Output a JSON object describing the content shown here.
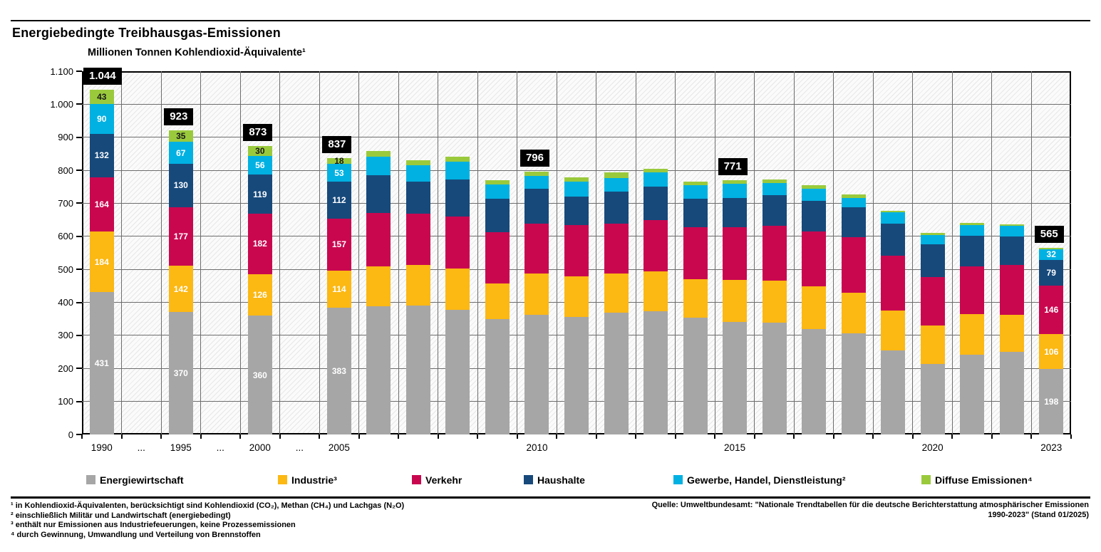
{
  "header": {
    "title": "Energiebedingte Treibhausgas-Emissionen",
    "subtitle": "Millionen Tonnen Kohlendioxid-Äquivalente¹"
  },
  "chart_data": {
    "type": "bar",
    "stacked": true,
    "title": "Energiebedingte Treibhausgas-Emissionen",
    "ylabel": "Millionen Tonnen Kohlendioxid-Äquivalente¹",
    "ylim": [
      0,
      1100
    ],
    "ytick_step": 100,
    "grid": true,
    "legend_position": "bottom",
    "series": [
      {
        "key": "energiewirtschaft",
        "name": "Energiewirtschaft",
        "color": "#a6a6a6",
        "label_color": "#ffffff"
      },
      {
        "key": "industrie",
        "name": "Industrie³",
        "color": "#fcb813",
        "label_color": "#ffffff"
      },
      {
        "key": "verkehr",
        "name": "Verkehr",
        "color": "#c9074f",
        "label_color": "#ffffff"
      },
      {
        "key": "haushalte",
        "name": "Haushalte",
        "color": "#17497b",
        "label_color": "#ffffff"
      },
      {
        "key": "gewerbe-handel-dienstleistung",
        "name": "Gewerbe, Handel, Dienstleistung²",
        "color": "#00b1e2",
        "label_color": "#ffffff"
      },
      {
        "key": "diffuse-emissionen",
        "name": "Diffuse Emissionen⁴",
        "color": "#9aca3c",
        "label_color": "#1a1a1a"
      }
    ],
    "x_slot_labels": [
      "1990",
      "...",
      "1995",
      "...",
      "2000",
      "...",
      "2005",
      "",
      "",
      "",
      "",
      "2010",
      "",
      "",
      "",
      "",
      "2015",
      "",
      "",
      "",
      "",
      "2020",
      "",
      "",
      "2023"
    ],
    "bars": [
      {
        "year": "1990",
        "slot": 0,
        "values": [
          431,
          184,
          164,
          132,
          90,
          43
        ],
        "total_label": "1.044",
        "segment_labels": true
      },
      {
        "year": "1995",
        "slot": 2,
        "values": [
          370,
          142,
          177,
          130,
          67,
          35
        ],
        "total_label": "923",
        "segment_labels": true
      },
      {
        "year": "2000",
        "slot": 4,
        "values": [
          360,
          126,
          182,
          119,
          56,
          30
        ],
        "total_label": "873",
        "segment_labels": true
      },
      {
        "year": "2005",
        "slot": 6,
        "values": [
          383,
          114,
          157,
          112,
          53,
          18
        ],
        "total_label": "837",
        "segment_labels": true
      },
      {
        "year": "2006",
        "slot": 7,
        "values": [
          388,
          120,
          162,
          115,
          56,
          17
        ],
        "total_label": null,
        "segment_labels": false
      },
      {
        "year": "2007",
        "slot": 8,
        "values": [
          390,
          124,
          155,
          97,
          50,
          14
        ],
        "total_label": null,
        "segment_labels": false
      },
      {
        "year": "2008",
        "slot": 9,
        "values": [
          378,
          124,
          158,
          112,
          55,
          15
        ],
        "total_label": null,
        "segment_labels": false
      },
      {
        "year": "2009",
        "slot": 10,
        "values": [
          349,
          108,
          155,
          102,
          43,
          13
        ],
        "total_label": null,
        "segment_labels": false
      },
      {
        "year": "2010",
        "slot": 11,
        "values": [
          362,
          125,
          152,
          105,
          40,
          12
        ],
        "total_label": "796",
        "segment_labels": false
      },
      {
        "year": "2011",
        "slot": 12,
        "values": [
          355,
          123,
          157,
          86,
          45,
          13
        ],
        "total_label": null,
        "segment_labels": false
      },
      {
        "year": "2012",
        "slot": 13,
        "values": [
          368,
          119,
          152,
          97,
          41,
          16
        ],
        "total_label": null,
        "segment_labels": false
      },
      {
        "year": "2013",
        "slot": 14,
        "values": [
          373,
          120,
          157,
          100,
          43,
          11
        ],
        "total_label": null,
        "segment_labels": false
      },
      {
        "year": "2014",
        "slot": 15,
        "values": [
          354,
          117,
          157,
          86,
          41,
          10
        ],
        "total_label": null,
        "segment_labels": false
      },
      {
        "year": "2015",
        "slot": 16,
        "values": [
          340,
          128,
          160,
          88,
          44,
          11
        ],
        "total_label": "771",
        "segment_labels": false
      },
      {
        "year": "2016",
        "slot": 17,
        "values": [
          338,
          128,
          166,
          93,
          37,
          10
        ],
        "total_label": null,
        "segment_labels": false
      },
      {
        "year": "2017",
        "slot": 18,
        "values": [
          319,
          129,
          167,
          93,
          36,
          10
        ],
        "total_label": null,
        "segment_labels": false
      },
      {
        "year": "2018",
        "slot": 19,
        "values": [
          306,
          123,
          169,
          90,
          29,
          9
        ],
        "total_label": null,
        "segment_labels": false
      },
      {
        "year": "2019",
        "slot": 20,
        "values": [
          254,
          121,
          167,
          97,
          33,
          6
        ],
        "total_label": null,
        "segment_labels": false
      },
      {
        "year": "2020",
        "slot": 21,
        "values": [
          213,
          116,
          148,
          98,
          28,
          7
        ],
        "total_label": null,
        "segment_labels": false
      },
      {
        "year": "2021",
        "slot": 22,
        "values": [
          241,
          124,
          145,
          92,
          33,
          6
        ],
        "total_label": null,
        "segment_labels": false
      },
      {
        "year": "2022",
        "slot": 23,
        "values": [
          250,
          113,
          150,
          87,
          32,
          5
        ],
        "total_label": null,
        "segment_labels": false
      },
      {
        "year": "2023",
        "slot": 24,
        "values": [
          198,
          106,
          146,
          79,
          32,
          4
        ],
        "total_label": "565",
        "segment_labels": true
      }
    ]
  },
  "legend": {
    "items": [
      {
        "key": "energiewirtschaft",
        "label": "Energiewirtschaft",
        "color": "#a6a6a6"
      },
      {
        "key": "industrie",
        "label": "Industrie³",
        "color": "#fcb813"
      },
      {
        "key": "verkehr",
        "label": "Verkehr",
        "color": "#c9074f"
      },
      {
        "key": "haushalte",
        "label": "Haushalte",
        "color": "#17497b"
      },
      {
        "key": "gewerbe-handel-dienstleistung",
        "label": "Gewerbe, Handel, Dienstleistung²",
        "color": "#00b1e2"
      },
      {
        "key": "diffuse-emissionen",
        "label": "Diffuse Emissionen⁴",
        "color": "#9aca3c"
      }
    ]
  },
  "footnotes": [
    "¹ in Kohlendioxid-Äquivalenten, berücksichtigt sind Kohlendioxid (CO₂), Methan (CH₄) und Lachgas (N₂O)",
    "² einschließlich Militär und Landwirtschaft (energiebedingt)",
    "³ enthält nur Emissionen aus Industriefeuerungen, keine Prozessemissionen",
    "⁴ durch Gewinnung, Umwandlung und Verteilung von Brennstoffen"
  ],
  "source": {
    "line1": "Quelle: Umweltbundesamt: \"Nationale Trendtabellen für die deutsche Berichterstattung atmosphärischer Emissionen",
    "line2": "1990-2023\" (Stand 01/2025)"
  }
}
